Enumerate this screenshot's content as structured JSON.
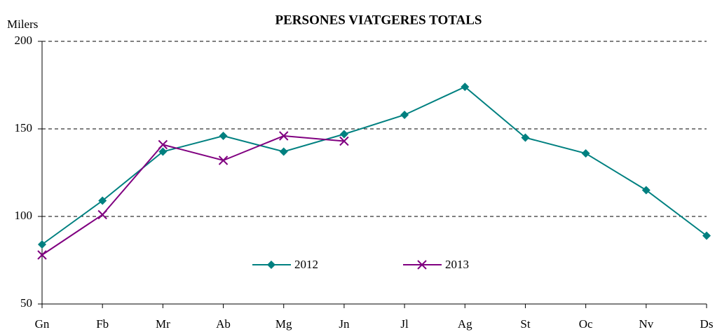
{
  "chart_data": {
    "type": "line",
    "title": "PERSONES VIATGERES TOTALS",
    "y_label": "Milers",
    "categories": [
      "Gn",
      "Fb",
      "Mr",
      "Ab",
      "Mg",
      "Jn",
      "Jl",
      "Ag",
      "St",
      "Oc",
      "Nv",
      "Ds"
    ],
    "series": [
      {
        "name": "2012",
        "color": "#008080",
        "marker": "diamond",
        "values": [
          84,
          109,
          137,
          146,
          137,
          147,
          158,
          174,
          145,
          136,
          115,
          89
        ]
      },
      {
        "name": "2013",
        "color": "#800080",
        "marker": "x",
        "values": [
          78,
          101,
          141,
          132,
          146,
          143,
          null,
          null,
          null,
          null,
          null,
          null
        ]
      }
    ],
    "ylim": [
      50,
      200
    ],
    "yticks": [
      50,
      100,
      150,
      200
    ],
    "grid": true,
    "legend": "center"
  }
}
